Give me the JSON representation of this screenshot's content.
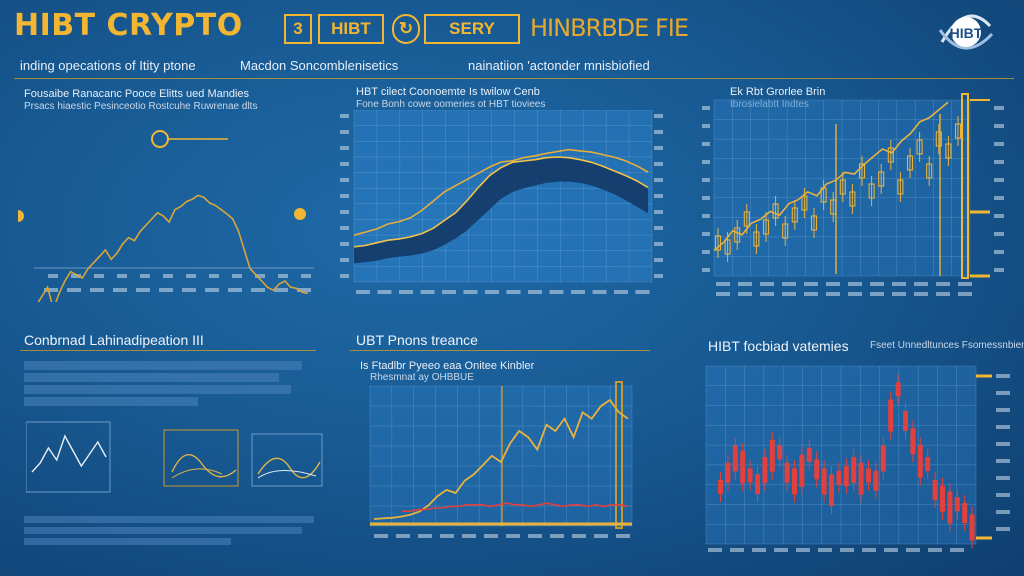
{
  "header": {
    "title": "HIBT CRYPTO",
    "tags": [
      "3",
      "HIBT",
      "SERY"
    ],
    "tag4": "HINBRBDE FIE",
    "logo": "HIBT",
    "sub": [
      "inding opecations of Itity ptone",
      "Macdon Soncomblenisetics",
      "nainatiion 'actonder mnisbiofied"
    ]
  },
  "colors": {
    "accent": "#f2b632",
    "background": "#185a93",
    "candle_red": "#e2403c"
  },
  "panels": {
    "p1": {
      "title": "Fousaibe Ranacanc Pooce Elitts ued Mandies",
      "subtitle": "Prsacs hiaestic Pesinceotio Rostcuhe Ruwrenae dlts"
    },
    "p2": {
      "title": "HBT cilect Coonoemte Is twilow Cenb",
      "subtitle": "Fone Bonh cowe oomeries ot HBT tioviees"
    },
    "p3": {
      "title": "Ek Rbt Grorlee Brin",
      "subtitle": "Ibrosielabtt Indtes"
    }
  },
  "section_titles": {
    "s4": "Conbrnad Lahinadipeation III",
    "s5": "UBT Pnons treance",
    "s6": "HIBT focbiad vatemies"
  },
  "panel5": {
    "title": "Is Ftadlbr Pyeeo eaa Onitee Kinbler",
    "subtitle": "Rhesmnat ay OHBBUE"
  },
  "panel6": {
    "legend": "Fseet Unnedltunces Fsomessnbien"
  },
  "chart_data": [
    {
      "type": "line",
      "series": [
        {
          "values": [
            210,
            225,
            240,
            205,
            230,
            250,
            265,
            260,
            255,
            270,
            280,
            290,
            300,
            285,
            295,
            310,
            320,
            315,
            330,
            340,
            350,
            360,
            355,
            345,
            365,
            370,
            378,
            382,
            388,
            385,
            376,
            372,
            365,
            358,
            350,
            330,
            300,
            270,
            260,
            250,
            240,
            235,
            245,
            250,
            240,
            238,
            232,
            230
          ]
        },
        {
          "values": [
            238,
            238,
            237,
            236,
            236,
            235,
            235,
            235,
            234,
            234,
            233,
            233,
            233,
            232,
            232,
            232,
            232,
            232,
            232,
            232,
            232,
            233,
            233,
            233,
            234,
            234,
            235,
            235,
            236,
            237,
            237,
            238,
            238,
            239,
            240,
            240,
            241,
            241,
            242,
            242,
            243,
            243,
            244,
            244,
            245,
            245,
            246,
            246
          ]
        }
      ]
    },
    {
      "type": "area",
      "series": [
        {
          "values": [
            40,
            45,
            50,
            58,
            62,
            68,
            80,
            95,
            110,
            120,
            130,
            140,
            150,
            158,
            160,
            165,
            168,
            172,
            175,
            178,
            176,
            174,
            170,
            166,
            160,
            152,
            142
          ]
        },
        {
          "values": [
            20,
            22,
            26,
            30,
            32,
            35,
            40,
            48,
            60,
            72,
            90,
            110,
            128,
            140,
            148,
            150,
            152,
            155,
            156,
            155,
            152,
            148,
            142,
            135,
            128,
            120,
            110
          ]
        },
        {
          "values": [
            10,
            12,
            14,
            18,
            20,
            22,
            25,
            30,
            38,
            48,
            60,
            76,
            92,
            108,
            118,
            124,
            128,
            132,
            134,
            134,
            132,
            128,
            122,
            115,
            106,
            96,
            86
          ]
        }
      ]
    },
    {
      "type": "line",
      "series": [
        {
          "values": [
            20,
            30,
            45,
            40,
            55,
            60,
            70,
            65,
            80,
            85,
            95,
            90,
            105,
            110,
            120,
            118,
            130,
            140,
            150,
            145,
            160,
            170,
            185,
            190,
            200,
            210
          ]
        },
        {
          "values": [
            30,
            25,
            40,
            60,
            35,
            50,
            70,
            45,
            65,
            80,
            55,
            90,
            75,
            100,
            85,
            120,
            95,
            110,
            140,
            100,
            130,
            150,
            120,
            160,
            145,
            170
          ]
        }
      ]
    },
    {
      "type": "line",
      "series": [
        {
          "values": [
            20,
            35,
            60,
            40,
            80,
            55,
            30,
            50,
            70,
            45
          ]
        }
      ]
    },
    {
      "type": "line",
      "series": [
        {
          "values": [
            8,
            9,
            10,
            12,
            15,
            20,
            30,
            45,
            55,
            50,
            70,
            80,
            95,
            110,
            100,
            130,
            150,
            140,
            120,
            160,
            150,
            170,
            140,
            180,
            170,
            190,
            200,
            180,
            170
          ]
        },
        {
          "values": [
            8,
            8,
            9,
            9,
            10,
            10,
            11,
            11,
            12,
            12,
            12,
            11,
            12,
            13,
            12,
            12,
            11,
            12,
            13,
            12,
            11,
            12,
            12,
            11,
            12,
            11,
            12,
            12,
            11
          ]
        }
      ]
    },
    {
      "type": "bar",
      "series": [
        {
          "values": [
            40,
            55,
            70,
            65,
            50,
            45,
            60,
            75,
            70,
            55,
            50,
            62,
            68,
            58,
            50,
            45,
            48,
            52,
            60,
            55,
            50,
            48,
            70,
            110,
            125,
            100,
            85,
            70,
            60,
            40,
            35,
            30,
            25,
            20,
            10
          ]
        }
      ]
    }
  ]
}
